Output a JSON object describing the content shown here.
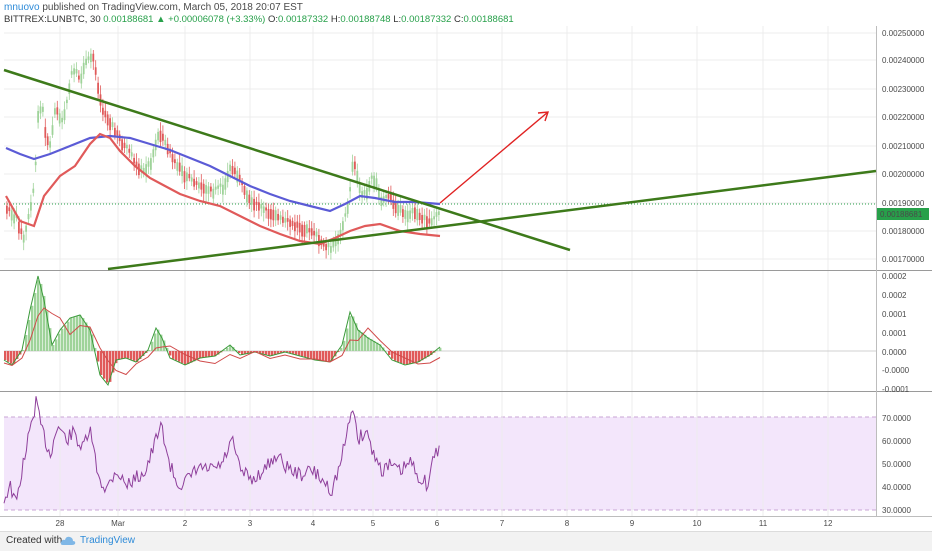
{
  "header": {
    "author": "mnuovo",
    "published_text": "published on TradingView.com, March 05, 2018 20:07 EST",
    "symbol": "BITTREX:LUNBTC, 30",
    "last": "0.00188681",
    "change_arrow": "▲",
    "change": "+0.00006078 (+3.33%)",
    "open_label": "O:",
    "open": "0.00187332",
    "high_label": "H:",
    "high": "0.00188748",
    "low_label": "L:",
    "low": "0.00187332",
    "close_label": "C:",
    "close": "0.00188681"
  },
  "price_axis": {
    "ticks": [
      "0.00250000",
      "0.00240000",
      "0.00230000",
      "0.00220000",
      "0.00210000",
      "0.00200000",
      "0.00190000",
      "0.00180000",
      "0.00170000"
    ],
    "current_price_tag": "0.00188681"
  },
  "macd_axis": {
    "ticks": [
      "0.0002",
      "0.0002",
      "0.0001",
      "0.0001",
      "0.0000",
      "-0.0000",
      "-0.0001"
    ]
  },
  "rsi_axis": {
    "ticks": [
      "70.0000",
      "60.0000",
      "50.0000",
      "40.0000",
      "30.0000"
    ]
  },
  "time_axis": {
    "labels": [
      "28",
      "Mar",
      "2",
      "3",
      "4",
      "5",
      "6",
      "7",
      "8",
      "9",
      "10",
      "11",
      "12"
    ]
  },
  "footer": {
    "created_with": "Created with",
    "brand": "TradingView"
  },
  "colors": {
    "up_candle": "#9fd39a",
    "down_candle": "#e05a5a",
    "ema_fast": "#e05a5a",
    "ema_slow": "#5b5bd6",
    "trendline": "#3d7a1a",
    "projection_arrow": "#e02222",
    "rsi_line": "#8e3f9b",
    "rsi_band": "#f3e6fb"
  }
}
